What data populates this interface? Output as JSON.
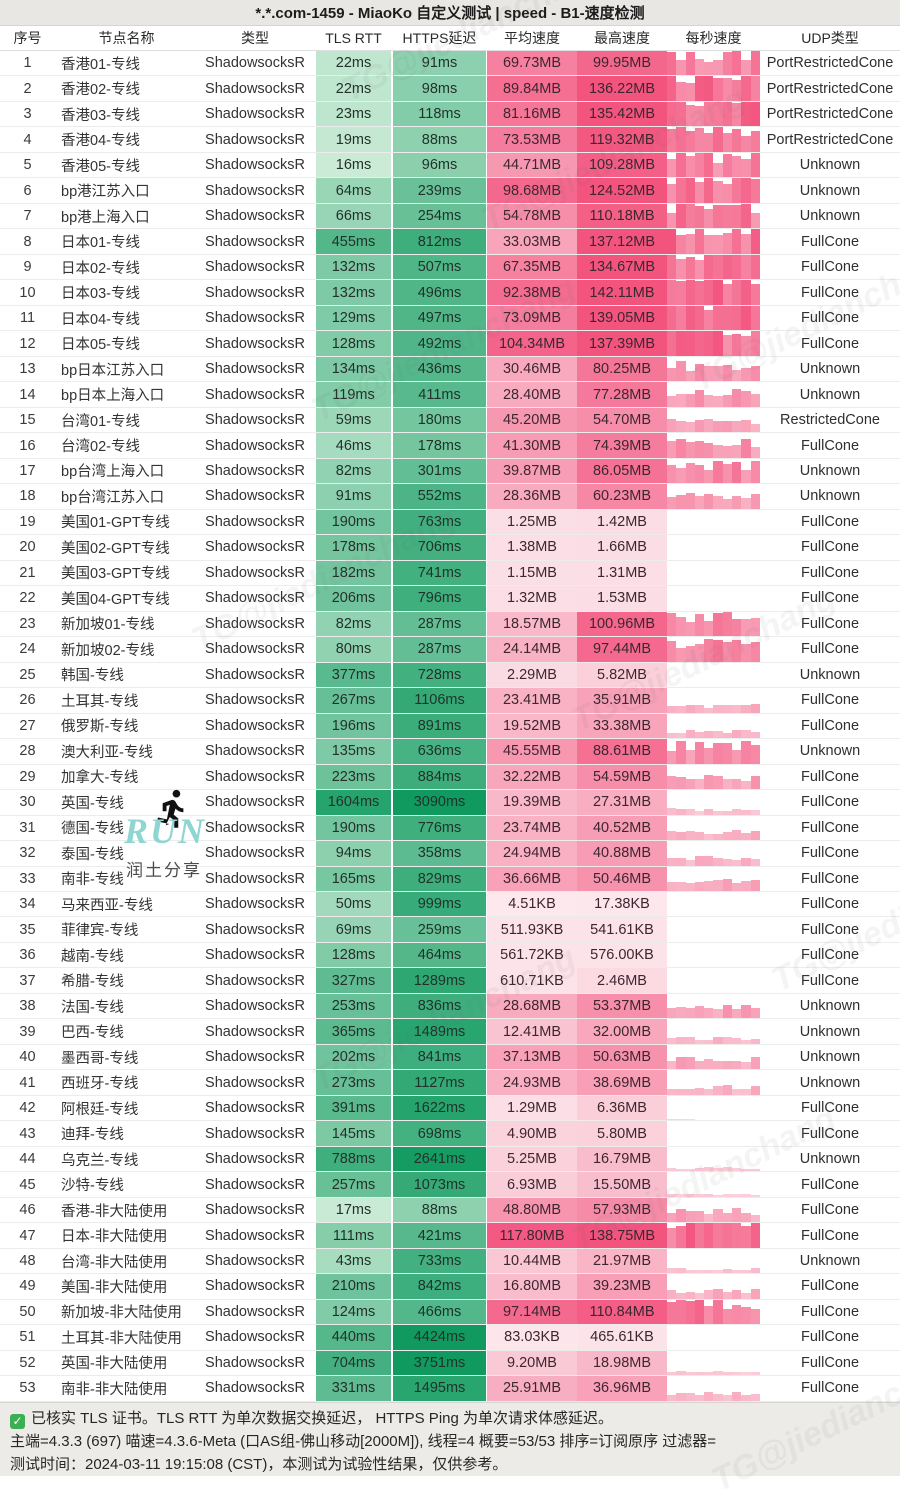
{
  "title": "*.*.com-1459 - MiaoKo 自定义测试 | speed - B1-速度检测",
  "columns": [
    "序号",
    "节点名称",
    "类型",
    "TLS RTT",
    "HTTPS延迟",
    "平均速度",
    "最高速度",
    "每秒速度",
    "UDP类型"
  ],
  "rows": [
    [
      1,
      "香港01-专线",
      "ShadowsocksR",
      "22ms",
      "91ms",
      "69.73MB",
      "99.95MB",
      "PortRestrictedCone"
    ],
    [
      2,
      "香港02-专线",
      "ShadowsocksR",
      "22ms",
      "98ms",
      "89.84MB",
      "136.22MB",
      "PortRestrictedCone"
    ],
    [
      3,
      "香港03-专线",
      "ShadowsocksR",
      "23ms",
      "118ms",
      "81.16MB",
      "135.42MB",
      "PortRestrictedCone"
    ],
    [
      4,
      "香港04-专线",
      "ShadowsocksR",
      "19ms",
      "88ms",
      "73.53MB",
      "119.32MB",
      "PortRestrictedCone"
    ],
    [
      5,
      "香港05-专线",
      "ShadowsocksR",
      "16ms",
      "96ms",
      "44.71MB",
      "109.28MB",
      "Unknown"
    ],
    [
      6,
      "bp港江苏入口",
      "ShadowsocksR",
      "64ms",
      "239ms",
      "98.68MB",
      "124.52MB",
      "Unknown"
    ],
    [
      7,
      "bp港上海入口",
      "ShadowsocksR",
      "66ms",
      "254ms",
      "54.78MB",
      "110.18MB",
      "Unknown"
    ],
    [
      8,
      "日本01-专线",
      "ShadowsocksR",
      "455ms",
      "812ms",
      "33.03MB",
      "137.12MB",
      "FullCone"
    ],
    [
      9,
      "日本02-专线",
      "ShadowsocksR",
      "132ms",
      "507ms",
      "67.35MB",
      "134.67MB",
      "FullCone"
    ],
    [
      10,
      "日本03-专线",
      "ShadowsocksR",
      "132ms",
      "496ms",
      "92.38MB",
      "142.11MB",
      "FullCone"
    ],
    [
      11,
      "日本04-专线",
      "ShadowsocksR",
      "129ms",
      "497ms",
      "73.09MB",
      "139.05MB",
      "FullCone"
    ],
    [
      12,
      "日本05-专线",
      "ShadowsocksR",
      "128ms",
      "492ms",
      "104.34MB",
      "137.39MB",
      "FullCone"
    ],
    [
      13,
      "bp日本江苏入口",
      "ShadowsocksR",
      "134ms",
      "436ms",
      "30.46MB",
      "80.25MB",
      "Unknown"
    ],
    [
      14,
      "bp日本上海入口",
      "ShadowsocksR",
      "119ms",
      "411ms",
      "28.40MB",
      "77.28MB",
      "Unknown"
    ],
    [
      15,
      "台湾01-专线",
      "ShadowsocksR",
      "59ms",
      "180ms",
      "45.20MB",
      "54.70MB",
      "RestrictedCone"
    ],
    [
      16,
      "台湾02-专线",
      "ShadowsocksR",
      "46ms",
      "178ms",
      "41.30MB",
      "74.39MB",
      "FullCone"
    ],
    [
      17,
      "bp台湾上海入口",
      "ShadowsocksR",
      "82ms",
      "301ms",
      "39.87MB",
      "86.05MB",
      "Unknown"
    ],
    [
      18,
      "bp台湾江苏入口",
      "ShadowsocksR",
      "91ms",
      "552ms",
      "28.36MB",
      "60.23MB",
      "Unknown"
    ],
    [
      19,
      "美国01-GPT专线",
      "ShadowsocksR",
      "190ms",
      "763ms",
      "1.25MB",
      "1.42MB",
      "FullCone"
    ],
    [
      20,
      "美国02-GPT专线",
      "ShadowsocksR",
      "178ms",
      "706ms",
      "1.38MB",
      "1.66MB",
      "FullCone"
    ],
    [
      21,
      "美国03-GPT专线",
      "ShadowsocksR",
      "182ms",
      "741ms",
      "1.15MB",
      "1.31MB",
      "FullCone"
    ],
    [
      22,
      "美国04-GPT专线",
      "ShadowsocksR",
      "206ms",
      "796ms",
      "1.32MB",
      "1.53MB",
      "FullCone"
    ],
    [
      23,
      "新加坡01-专线",
      "ShadowsocksR",
      "82ms",
      "287ms",
      "18.57MB",
      "100.96MB",
      "FullCone"
    ],
    [
      24,
      "新加坡02-专线",
      "ShadowsocksR",
      "80ms",
      "287ms",
      "24.14MB",
      "97.44MB",
      "FullCone"
    ],
    [
      25,
      "韩国-专线",
      "ShadowsocksR",
      "377ms",
      "728ms",
      "2.29MB",
      "5.82MB",
      "Unknown"
    ],
    [
      26,
      "土耳其-专线",
      "ShadowsocksR",
      "267ms",
      "1106ms",
      "23.41MB",
      "35.91MB",
      "FullCone"
    ],
    [
      27,
      "俄罗斯-专线",
      "ShadowsocksR",
      "196ms",
      "891ms",
      "19.52MB",
      "33.38MB",
      "FullCone"
    ],
    [
      28,
      "澳大利亚-专线",
      "ShadowsocksR",
      "135ms",
      "636ms",
      "45.55MB",
      "88.61MB",
      "Unknown"
    ],
    [
      29,
      "加拿大-专线",
      "ShadowsocksR",
      "223ms",
      "884ms",
      "32.22MB",
      "54.59MB",
      "FullCone"
    ],
    [
      30,
      "英国-专线",
      "ShadowsocksR",
      "1604ms",
      "3090ms",
      "19.39MB",
      "27.31MB",
      "FullCone"
    ],
    [
      31,
      "德国-专线",
      "ShadowsocksR",
      "190ms",
      "776ms",
      "23.74MB",
      "40.52MB",
      "FullCone"
    ],
    [
      32,
      "泰国-专线",
      "ShadowsocksR",
      "94ms",
      "358ms",
      "24.94MB",
      "40.88MB",
      "FullCone"
    ],
    [
      33,
      "南非-专线",
      "ShadowsocksR",
      "165ms",
      "829ms",
      "36.66MB",
      "50.46MB",
      "FullCone"
    ],
    [
      34,
      "马来西亚-专线",
      "ShadowsocksR",
      "50ms",
      "999ms",
      "4.51KB",
      "17.38KB",
      "FullCone"
    ],
    [
      35,
      "菲律宾-专线",
      "ShadowsocksR",
      "69ms",
      "259ms",
      "511.93KB",
      "541.61KB",
      "FullCone"
    ],
    [
      36,
      "越南-专线",
      "ShadowsocksR",
      "128ms",
      "464ms",
      "561.72KB",
      "576.00KB",
      "FullCone"
    ],
    [
      37,
      "希腊-专线",
      "ShadowsocksR",
      "327ms",
      "1289ms",
      "610.71KB",
      "2.46MB",
      "FullCone"
    ],
    [
      38,
      "法国-专线",
      "ShadowsocksR",
      "253ms",
      "836ms",
      "28.68MB",
      "53.37MB",
      "Unknown"
    ],
    [
      39,
      "巴西-专线",
      "ShadowsocksR",
      "365ms",
      "1489ms",
      "12.41MB",
      "32.00MB",
      "Unknown"
    ],
    [
      40,
      "墨西哥-专线",
      "ShadowsocksR",
      "202ms",
      "841ms",
      "37.13MB",
      "50.63MB",
      "Unknown"
    ],
    [
      41,
      "西班牙-专线",
      "ShadowsocksR",
      "273ms",
      "1127ms",
      "24.93MB",
      "38.69MB",
      "Unknown"
    ],
    [
      42,
      "阿根廷-专线",
      "ShadowsocksR",
      "391ms",
      "1622ms",
      "1.29MB",
      "6.36MB",
      "FullCone"
    ],
    [
      43,
      "迪拜-专线",
      "ShadowsocksR",
      "145ms",
      "698ms",
      "4.90MB",
      "5.80MB",
      "FullCone"
    ],
    [
      44,
      "乌克兰-专线",
      "ShadowsocksR",
      "788ms",
      "2641ms",
      "5.25MB",
      "16.79MB",
      "Unknown"
    ],
    [
      45,
      "沙特-专线",
      "ShadowsocksR",
      "257ms",
      "1073ms",
      "6.93MB",
      "15.50MB",
      "FullCone"
    ],
    [
      46,
      "香港-非大陆使用",
      "ShadowsocksR",
      "17ms",
      "88ms",
      "48.80MB",
      "57.93MB",
      "FullCone"
    ],
    [
      47,
      "日本-非大陆使用",
      "ShadowsocksR",
      "111ms",
      "421ms",
      "117.80MB",
      "138.75MB",
      "FullCone"
    ],
    [
      48,
      "台湾-非大陆使用",
      "ShadowsocksR",
      "43ms",
      "733ms",
      "10.44MB",
      "21.97MB",
      "Unknown"
    ],
    [
      49,
      "美国-非大陆使用",
      "ShadowsocksR",
      "210ms",
      "842ms",
      "16.80MB",
      "39.23MB",
      "FullCone"
    ],
    [
      50,
      "新加坡-非大陆使用",
      "ShadowsocksR",
      "124ms",
      "466ms",
      "97.14MB",
      "110.84MB",
      "FullCone"
    ],
    [
      51,
      "土耳其-非大陆使用",
      "ShadowsocksR",
      "440ms",
      "4424ms",
      "83.03KB",
      "465.61KB",
      "FullCone"
    ],
    [
      52,
      "英国-非大陆使用",
      "ShadowsocksR",
      "704ms",
      "3751ms",
      "9.20MB",
      "18.98MB",
      "FullCone"
    ],
    [
      53,
      "南非-非大陆使用",
      "ShadowsocksR",
      "331ms",
      "1495ms",
      "25.91MB",
      "36.96MB",
      "FullCone"
    ]
  ],
  "footer": {
    "line1": "已核实 TLS 证书。TLS RTT 为单次数据交换延迟， HTTPS Ping 为单次请求体感延迟。",
    "line2": "主端=4.3.3 (697) 喵速=4.3.6-Meta (口AS组-佛山移动[2000M]), 线程=4 概要=53/53 排序=订阅原序 过滤器=",
    "line3": "测试时间：2024-03-11 19:15:08 (CST)，本测试为试验性结果，仅供参考。",
    "check_glyph": "✓"
  },
  "watermark": {
    "run_text": "RUN",
    "share_text": "润土分享",
    "diagonal_text": "TG@jiedianchang"
  },
  "colors": {
    "green_light": "#cdecd7",
    "green_dark": "#109a60",
    "pink_light": "#fce8ed",
    "pink_strong": "#f3547e",
    "title_bg": "#e8e7e4",
    "footer_bg": "#edebe8",
    "check_green": "#3cae54"
  }
}
